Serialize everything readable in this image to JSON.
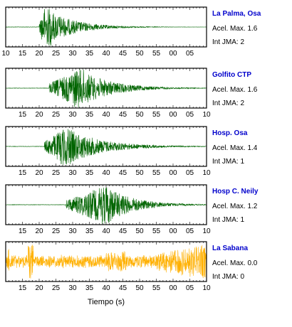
{
  "chart_data": {
    "type": "line",
    "xlabel": "Tiempo (s)",
    "x_tick_labels_top": [
      "10",
      "15",
      "20",
      "25",
      "30",
      "35",
      "40",
      "45",
      "50",
      "55",
      "00",
      "05"
    ],
    "x_tick_labels_other": [
      "15",
      "20",
      "25",
      "30",
      "35",
      "40",
      "45",
      "50",
      "55",
      "00",
      "05",
      "10"
    ],
    "stations": [
      {
        "name": "La Palma, Osa",
        "accel_label": "Acel. Max. 1.6",
        "int_label": "Int JMA: 2",
        "color": "#006400",
        "onset_s": 20,
        "peak_s": 22,
        "amplitude": 1.0,
        "duration_s": 8
      },
      {
        "name": "Golfito CTP",
        "accel_label": "Acel. Max. 1.6",
        "int_label": "Int JMA: 2",
        "color": "#006400",
        "onset_s": 23,
        "peak_s": 32,
        "amplitude": 1.0,
        "duration_s": 9
      },
      {
        "name": "Hosp. Osa",
        "accel_label": "Acel. Max. 1.4",
        "int_label": "Int JMA: 1",
        "color": "#006400",
        "onset_s": 21.5,
        "peak_s": 28,
        "amplitude": 1.0,
        "duration_s": 10
      },
      {
        "name": "Hosp C. Neily",
        "accel_label": "Acel. Max. 1.2",
        "int_label": "Int JMA: 1",
        "color": "#006400",
        "onset_s": 28,
        "peak_s": 40,
        "amplitude": 1.0,
        "duration_s": 8
      },
      {
        "name": "La Sabana",
        "accel_label": "Acel. Max. 0.0",
        "int_label": "Int JMA: 0",
        "color": "#FFB000",
        "onset_s": 10,
        "peak_s": 67,
        "amplitude": 1.0,
        "duration_s": 60
      }
    ]
  }
}
